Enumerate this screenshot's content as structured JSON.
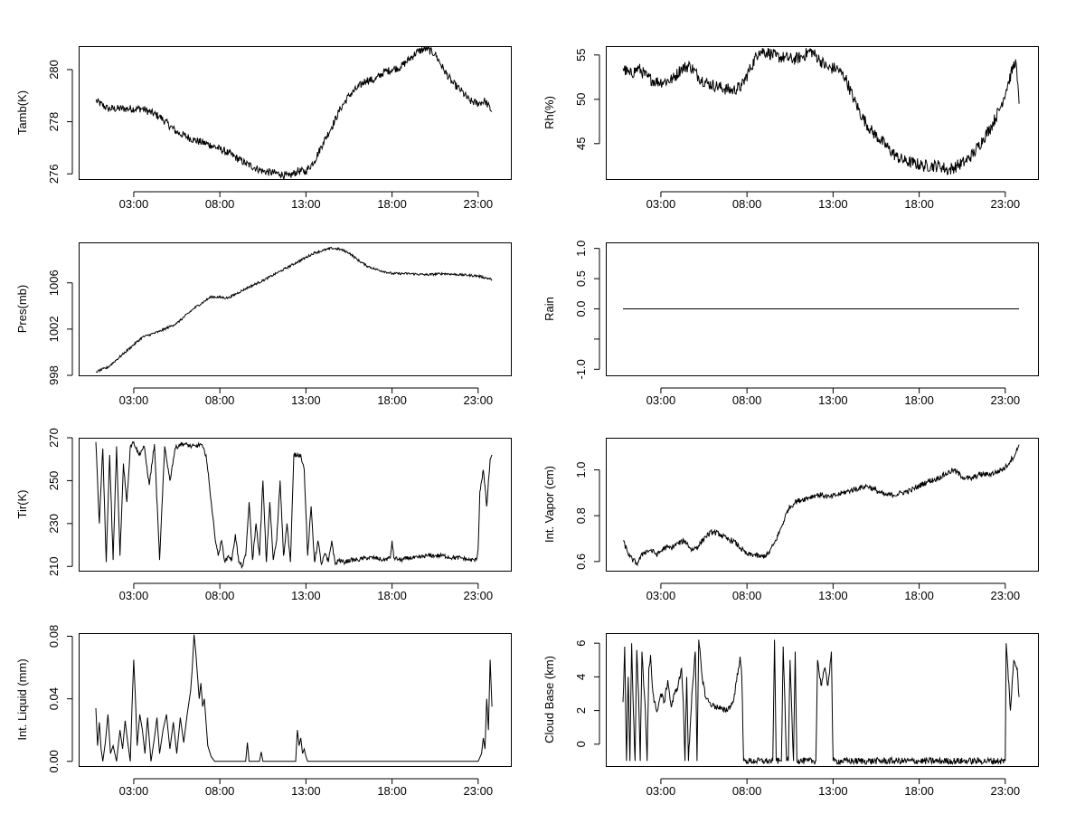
{
  "figure": {
    "background": "#ffffff",
    "line_color": "#000000"
  },
  "chart_data": [
    {
      "type": "line",
      "ylabel": "Tamb(K)",
      "ylim": [
        275.8,
        280.9
      ],
      "yticks": [
        276,
        278,
        280
      ],
      "ytick_labels": [
        "276",
        "278",
        "280"
      ],
      "xticks": [
        3,
        8,
        13,
        18,
        23
      ],
      "xtick_labels": [
        "03:00",
        "08:00",
        "13:00",
        "18:00",
        "23:00"
      ],
      "x": [
        0.8,
        1.5,
        2.5,
        3.5,
        4.5,
        5.5,
        6.5,
        7.5,
        8.5,
        9.5,
        10.5,
        11.5,
        12.0,
        12.5,
        13.0,
        13.5,
        14.0,
        14.5,
        15.0,
        15.5,
        16.0,
        16.5,
        17.0,
        17.5,
        18.0,
        18.5,
        19.0,
        19.5,
        20.0,
        20.5,
        21.0,
        21.5,
        22.0,
        22.5,
        23.0,
        23.4,
        23.8
      ],
      "y": [
        278.8,
        278.5,
        278.5,
        278.5,
        278.2,
        277.6,
        277.3,
        277.1,
        276.8,
        276.4,
        276.1,
        276.0,
        275.9,
        276.1,
        276.1,
        276.5,
        277.2,
        277.8,
        278.5,
        279.0,
        279.3,
        279.6,
        279.6,
        279.9,
        280.0,
        280.1,
        280.4,
        280.7,
        280.8,
        280.6,
        280.0,
        279.5,
        279.2,
        278.8,
        278.7,
        278.8,
        278.4
      ],
      "noise": 0.15
    },
    {
      "type": "line",
      "ylabel": "Rh(%)",
      "ylim": [
        41,
        56
      ],
      "yticks": [
        45,
        50,
        55
      ],
      "ytick_labels": [
        "45",
        "50",
        "55"
      ],
      "xticks": [
        3,
        8,
        13,
        18,
        23
      ],
      "xtick_labels": [
        "03:00",
        "08:00",
        "13:00",
        "18:00",
        "23:00"
      ],
      "x": [
        0.8,
        1.2,
        1.7,
        2.2,
        2.7,
        3.2,
        3.7,
        4.2,
        4.7,
        5.2,
        5.7,
        6.2,
        6.7,
        7.2,
        7.7,
        8.2,
        8.7,
        9.2,
        9.7,
        10.2,
        10.7,
        11.2,
        11.7,
        12.2,
        12.7,
        13.2,
        13.7,
        14.2,
        14.7,
        15.2,
        15.7,
        16.2,
        16.7,
        17.2,
        17.7,
        18.2,
        18.7,
        19.2,
        19.7,
        20.2,
        20.7,
        21.2,
        21.7,
        22.2,
        22.7,
        23.2,
        23.6,
        23.8
      ],
      "y": [
        53.5,
        52.8,
        53.5,
        52.5,
        52.0,
        52.0,
        52.3,
        53.5,
        53.8,
        52.5,
        51.8,
        51.5,
        51.2,
        51.0,
        51.5,
        53.5,
        55.5,
        55.3,
        54.8,
        54.7,
        54.5,
        54.8,
        55.5,
        54.5,
        53.5,
        53.5,
        52.5,
        50.0,
        48.0,
        46.5,
        45.5,
        44.5,
        43.5,
        43.0,
        42.8,
        42.5,
        42.5,
        42.5,
        42.0,
        42.5,
        43.0,
        44.0,
        45.5,
        47.0,
        49.0,
        52.0,
        54.5,
        49.5
      ],
      "noise": 0.7
    },
    {
      "type": "line",
      "ylabel": "Pres(mb)",
      "ylim": [
        998,
        1009.5
      ],
      "yticks": [
        998,
        1002,
        1006
      ],
      "ytick_labels": [
        "998",
        "1002",
        "1006"
      ],
      "xticks": [
        3,
        8,
        13,
        18,
        23
      ],
      "xtick_labels": [
        "03:00",
        "08:00",
        "13:00",
        "18:00",
        "23:00"
      ],
      "x": [
        0.8,
        1.5,
        2.5,
        3.5,
        4.5,
        5.5,
        6.5,
        7.5,
        8.5,
        9.5,
        10.5,
        11.5,
        12.5,
        13.5,
        14.0,
        14.5,
        15.0,
        15.5,
        16.0,
        16.5,
        17.0,
        17.5,
        18.0,
        19.0,
        20.0,
        21.0,
        22.0,
        23.0,
        23.8
      ],
      "y": [
        998.3,
        998.7,
        1000.0,
        1001.3,
        1001.8,
        1002.5,
        1003.8,
        1004.8,
        1004.7,
        1005.5,
        1006.2,
        1007.0,
        1007.8,
        1008.6,
        1008.8,
        1009.0,
        1008.9,
        1008.6,
        1008.0,
        1007.5,
        1007.2,
        1007.0,
        1006.8,
        1006.8,
        1006.7,
        1006.8,
        1006.7,
        1006.6,
        1006.3
      ],
      "noise": 0.1
    },
    {
      "type": "line",
      "ylabel": "Rain",
      "ylim": [
        -1.1,
        1.1
      ],
      "yticks": [
        -1.0,
        -0.5,
        0.0,
        0.5,
        1.0
      ],
      "ytick_labels": [
        "-1.0",
        "",
        "0.0",
        "0.5",
        "1.0"
      ],
      "xticks": [
        3,
        8,
        13,
        18,
        23
      ],
      "xtick_labels": [
        "03:00",
        "08:00",
        "13:00",
        "18:00",
        "23:00"
      ],
      "x": [
        0.8,
        23.8
      ],
      "y": [
        0,
        0
      ],
      "noise": 0
    },
    {
      "type": "line",
      "ylabel": "Tir(K)",
      "ylim": [
        208,
        270
      ],
      "yticks": [
        210,
        230,
        250,
        270
      ],
      "ytick_labels": [
        "210",
        "230",
        "250",
        "270"
      ],
      "xticks": [
        3,
        8,
        13,
        18,
        23
      ],
      "xtick_labels": [
        "03:00",
        "08:00",
        "13:00",
        "18:00",
        "23:00"
      ],
      "x": [
        0.8,
        1.0,
        1.2,
        1.4,
        1.6,
        1.8,
        2.0,
        2.2,
        2.4,
        2.6,
        2.8,
        3.0,
        3.3,
        3.6,
        3.9,
        4.2,
        4.5,
        4.8,
        5.1,
        5.4,
        5.7,
        6.0,
        6.3,
        6.6,
        6.9,
        7.2,
        7.5,
        7.7,
        7.9,
        8.1,
        8.3,
        8.5,
        8.7,
        8.9,
        9.1,
        9.3,
        9.5,
        9.7,
        9.9,
        10.1,
        10.3,
        10.5,
        10.7,
        10.9,
        11.1,
        11.3,
        11.5,
        11.7,
        11.9,
        12.1,
        12.3,
        12.5,
        12.7,
        12.9,
        13.1,
        13.3,
        13.5,
        13.7,
        13.9,
        14.1,
        14.3,
        14.5,
        14.7,
        14.9,
        15.2,
        15.6,
        16.0,
        16.5,
        17.0,
        17.5,
        17.9,
        18.0,
        18.1,
        18.5,
        19.0,
        19.5,
        20.0,
        20.5,
        21.0,
        21.5,
        22.0,
        22.5,
        22.9,
        23.0,
        23.1,
        23.3,
        23.5,
        23.7,
        23.8
      ],
      "y": [
        268,
        230,
        265,
        212,
        262,
        213,
        266,
        215,
        258,
        240,
        266,
        268,
        262,
        266,
        248,
        267,
        213,
        266,
        250,
        265,
        267,
        267,
        266,
        266,
        267,
        262,
        240,
        225,
        215,
        222,
        212,
        215,
        213,
        225,
        212,
        210,
        215,
        240,
        213,
        230,
        215,
        250,
        212,
        240,
        213,
        222,
        250,
        215,
        230,
        212,
        262,
        262,
        262,
        255,
        215,
        238,
        212,
        222,
        211,
        216,
        212,
        222,
        211,
        213,
        212,
        213,
        213,
        214,
        214,
        213,
        214,
        222,
        214,
        213,
        214,
        214,
        215,
        215,
        215,
        214,
        214,
        213,
        213,
        218,
        245,
        255,
        238,
        260,
        262
      ],
      "noise": 1.0
    },
    {
      "type": "line",
      "ylabel": "Int. Vapor (cm)",
      "ylim": [
        0.56,
        1.14
      ],
      "yticks": [
        0.6,
        0.8,
        1.0
      ],
      "ytick_labels": [
        "0.6",
        "0.8",
        "1.0"
      ],
      "xticks": [
        3,
        8,
        13,
        18,
        23
      ],
      "xtick_labels": [
        "03:00",
        "08:00",
        "13:00",
        "18:00",
        "23:00"
      ],
      "x": [
        0.8,
        1.2,
        1.6,
        2.0,
        2.4,
        2.8,
        3.2,
        3.6,
        4.0,
        4.4,
        4.8,
        5.2,
        5.6,
        6.0,
        6.4,
        6.8,
        7.2,
        7.6,
        8.0,
        8.4,
        8.8,
        9.2,
        9.6,
        10.0,
        10.4,
        10.8,
        11.2,
        11.6,
        12.0,
        12.4,
        12.8,
        13.2,
        13.6,
        14.0,
        14.5,
        15.0,
        15.5,
        16.0,
        16.5,
        17.0,
        17.5,
        18.0,
        18.5,
        19.0,
        19.5,
        20.0,
        20.5,
        21.0,
        21.5,
        22.0,
        22.5,
        23.0,
        23.3,
        23.6,
        23.8
      ],
      "y": [
        0.69,
        0.62,
        0.59,
        0.64,
        0.65,
        0.63,
        0.66,
        0.66,
        0.68,
        0.69,
        0.65,
        0.67,
        0.71,
        0.73,
        0.72,
        0.7,
        0.69,
        0.66,
        0.63,
        0.63,
        0.62,
        0.63,
        0.68,
        0.75,
        0.83,
        0.86,
        0.87,
        0.88,
        0.89,
        0.89,
        0.88,
        0.89,
        0.9,
        0.91,
        0.92,
        0.93,
        0.91,
        0.89,
        0.89,
        0.9,
        0.91,
        0.93,
        0.95,
        0.96,
        0.98,
        1.0,
        0.97,
        0.96,
        0.98,
        0.98,
        0.99,
        1.01,
        1.04,
        1.07,
        1.11
      ],
      "noise": 0.012
    },
    {
      "type": "line",
      "ylabel": "Int. Liquid (mm)",
      "ylim": [
        -0.003,
        0.082
      ],
      "yticks": [
        0.0,
        0.04,
        0.08
      ],
      "ytick_labels": [
        "0.00",
        "0.04",
        "0.08"
      ],
      "xticks": [
        3,
        8,
        13,
        18,
        23
      ],
      "xtick_labels": [
        "03:00",
        "08:00",
        "13:00",
        "18:00",
        "23:00"
      ],
      "x": [
        0.8,
        0.9,
        1.0,
        1.1,
        1.2,
        1.35,
        1.5,
        1.65,
        1.8,
        2.0,
        2.2,
        2.35,
        2.5,
        2.65,
        2.8,
        2.9,
        3.0,
        3.1,
        3.2,
        3.35,
        3.5,
        3.65,
        3.8,
        4.0,
        4.2,
        4.35,
        4.5,
        4.7,
        4.9,
        5.1,
        5.3,
        5.5,
        5.7,
        5.9,
        6.1,
        6.3,
        6.4,
        6.5,
        6.6,
        6.7,
        6.8,
        6.9,
        7.0,
        7.1,
        7.2,
        7.3,
        7.5,
        7.7,
        7.9,
        8.5,
        9.0,
        9.5,
        9.6,
        9.7,
        10.0,
        10.3,
        10.4,
        10.5,
        11.0,
        11.5,
        12.0,
        12.4,
        12.5,
        12.6,
        12.7,
        12.8,
        12.9,
        13.0,
        13.1,
        13.3,
        14.0,
        16.0,
        18.0,
        20.0,
        22.0,
        23.0,
        23.2,
        23.3,
        23.4,
        23.5,
        23.6,
        23.7,
        23.8
      ],
      "y": [
        0.034,
        0.01,
        0.025,
        0.008,
        0.0,
        0.012,
        0.03,
        0.005,
        0.01,
        0.0,
        0.02,
        0.008,
        0.026,
        0.012,
        0.0,
        0.035,
        0.065,
        0.04,
        0.01,
        0.03,
        0.02,
        0.005,
        0.028,
        0.0,
        0.015,
        0.028,
        0.005,
        0.02,
        0.03,
        0.008,
        0.025,
        0.005,
        0.028,
        0.012,
        0.03,
        0.045,
        0.06,
        0.081,
        0.07,
        0.055,
        0.04,
        0.05,
        0.035,
        0.04,
        0.025,
        0.01,
        0.003,
        0.0,
        0.0,
        0.0,
        0.0,
        0.0,
        0.012,
        0.0,
        0.0,
        0.0,
        0.006,
        0.0,
        0.0,
        0.0,
        0.0,
        0.0,
        0.02,
        0.01,
        0.015,
        0.005,
        0.008,
        0.003,
        0.0,
        0.0,
        0.0,
        0.0,
        0.0,
        0.0,
        0.0,
        0.0,
        0.005,
        0.015,
        0.008,
        0.04,
        0.02,
        0.065,
        0.035
      ],
      "noise": 0
    },
    {
      "type": "line",
      "ylabel": "Cloud Base (km)",
      "ylim": [
        -1.3,
        6.6
      ],
      "yticks": [
        0,
        2,
        4,
        6
      ],
      "ytick_labels": [
        "0",
        "2",
        "4",
        "6"
      ],
      "xticks": [
        3,
        8,
        13,
        18,
        23
      ],
      "xtick_labels": [
        "03:00",
        "08:00",
        "13:00",
        "18:00",
        "23:00"
      ],
      "x": [
        0.8,
        0.9,
        1.0,
        1.1,
        1.2,
        1.3,
        1.4,
        1.5,
        1.6,
        1.7,
        1.8,
        1.9,
        2.0,
        2.1,
        2.2,
        2.3,
        2.4,
        2.5,
        2.6,
        2.8,
        3.0,
        3.2,
        3.4,
        3.6,
        3.8,
        4.0,
        4.2,
        4.3,
        4.4,
        4.5,
        4.6,
        4.8,
        5.0,
        5.1,
        5.2,
        5.4,
        5.6,
        5.8,
        6.0,
        6.3,
        6.6,
        6.9,
        7.2,
        7.5,
        7.6,
        7.7,
        7.8,
        7.9,
        8.5,
        9.2,
        9.5,
        9.6,
        9.7,
        9.9,
        10.0,
        10.1,
        10.3,
        10.4,
        10.5,
        10.7,
        10.8,
        10.9,
        11.1,
        11.5,
        12.0,
        12.1,
        12.3,
        12.5,
        12.7,
        12.9,
        13.0,
        13.1,
        15.0,
        18.0,
        21.0,
        23.0,
        23.05,
        23.15,
        23.3,
        23.5,
        23.7,
        23.8
      ],
      "y": [
        2.5,
        5.8,
        -1.0,
        4.0,
        -1.0,
        6.0,
        2.0,
        -1.0,
        5.6,
        3.0,
        -1.0,
        5.5,
        3.5,
        2.0,
        -1.0,
        4.5,
        5.3,
        3.5,
        2.5,
        2.0,
        3.0,
        2.5,
        3.8,
        2.2,
        3.0,
        3.5,
        4.5,
        2.5,
        -1.0,
        4.0,
        -1.0,
        3.0,
        5.5,
        -1.0,
        6.2,
        4.0,
        2.8,
        2.5,
        2.3,
        2.2,
        2.0,
        2.1,
        2.5,
        4.5,
        5.2,
        4.0,
        -1.0,
        -1.0,
        -1.0,
        -1.0,
        -1.0,
        6.2,
        -1.0,
        -1.0,
        -1.0,
        5.8,
        -1.0,
        -1.0,
        5.0,
        -1.0,
        5.5,
        -1.0,
        -1.0,
        -1.0,
        -1.0,
        5.0,
        3.5,
        4.5,
        3.5,
        5.5,
        -1.0,
        -1.0,
        -1.0,
        -1.0,
        -1.0,
        -1.0,
        6.0,
        4.5,
        2.0,
        5.0,
        4.5,
        2.8
      ],
      "noise": 0.2
    }
  ]
}
